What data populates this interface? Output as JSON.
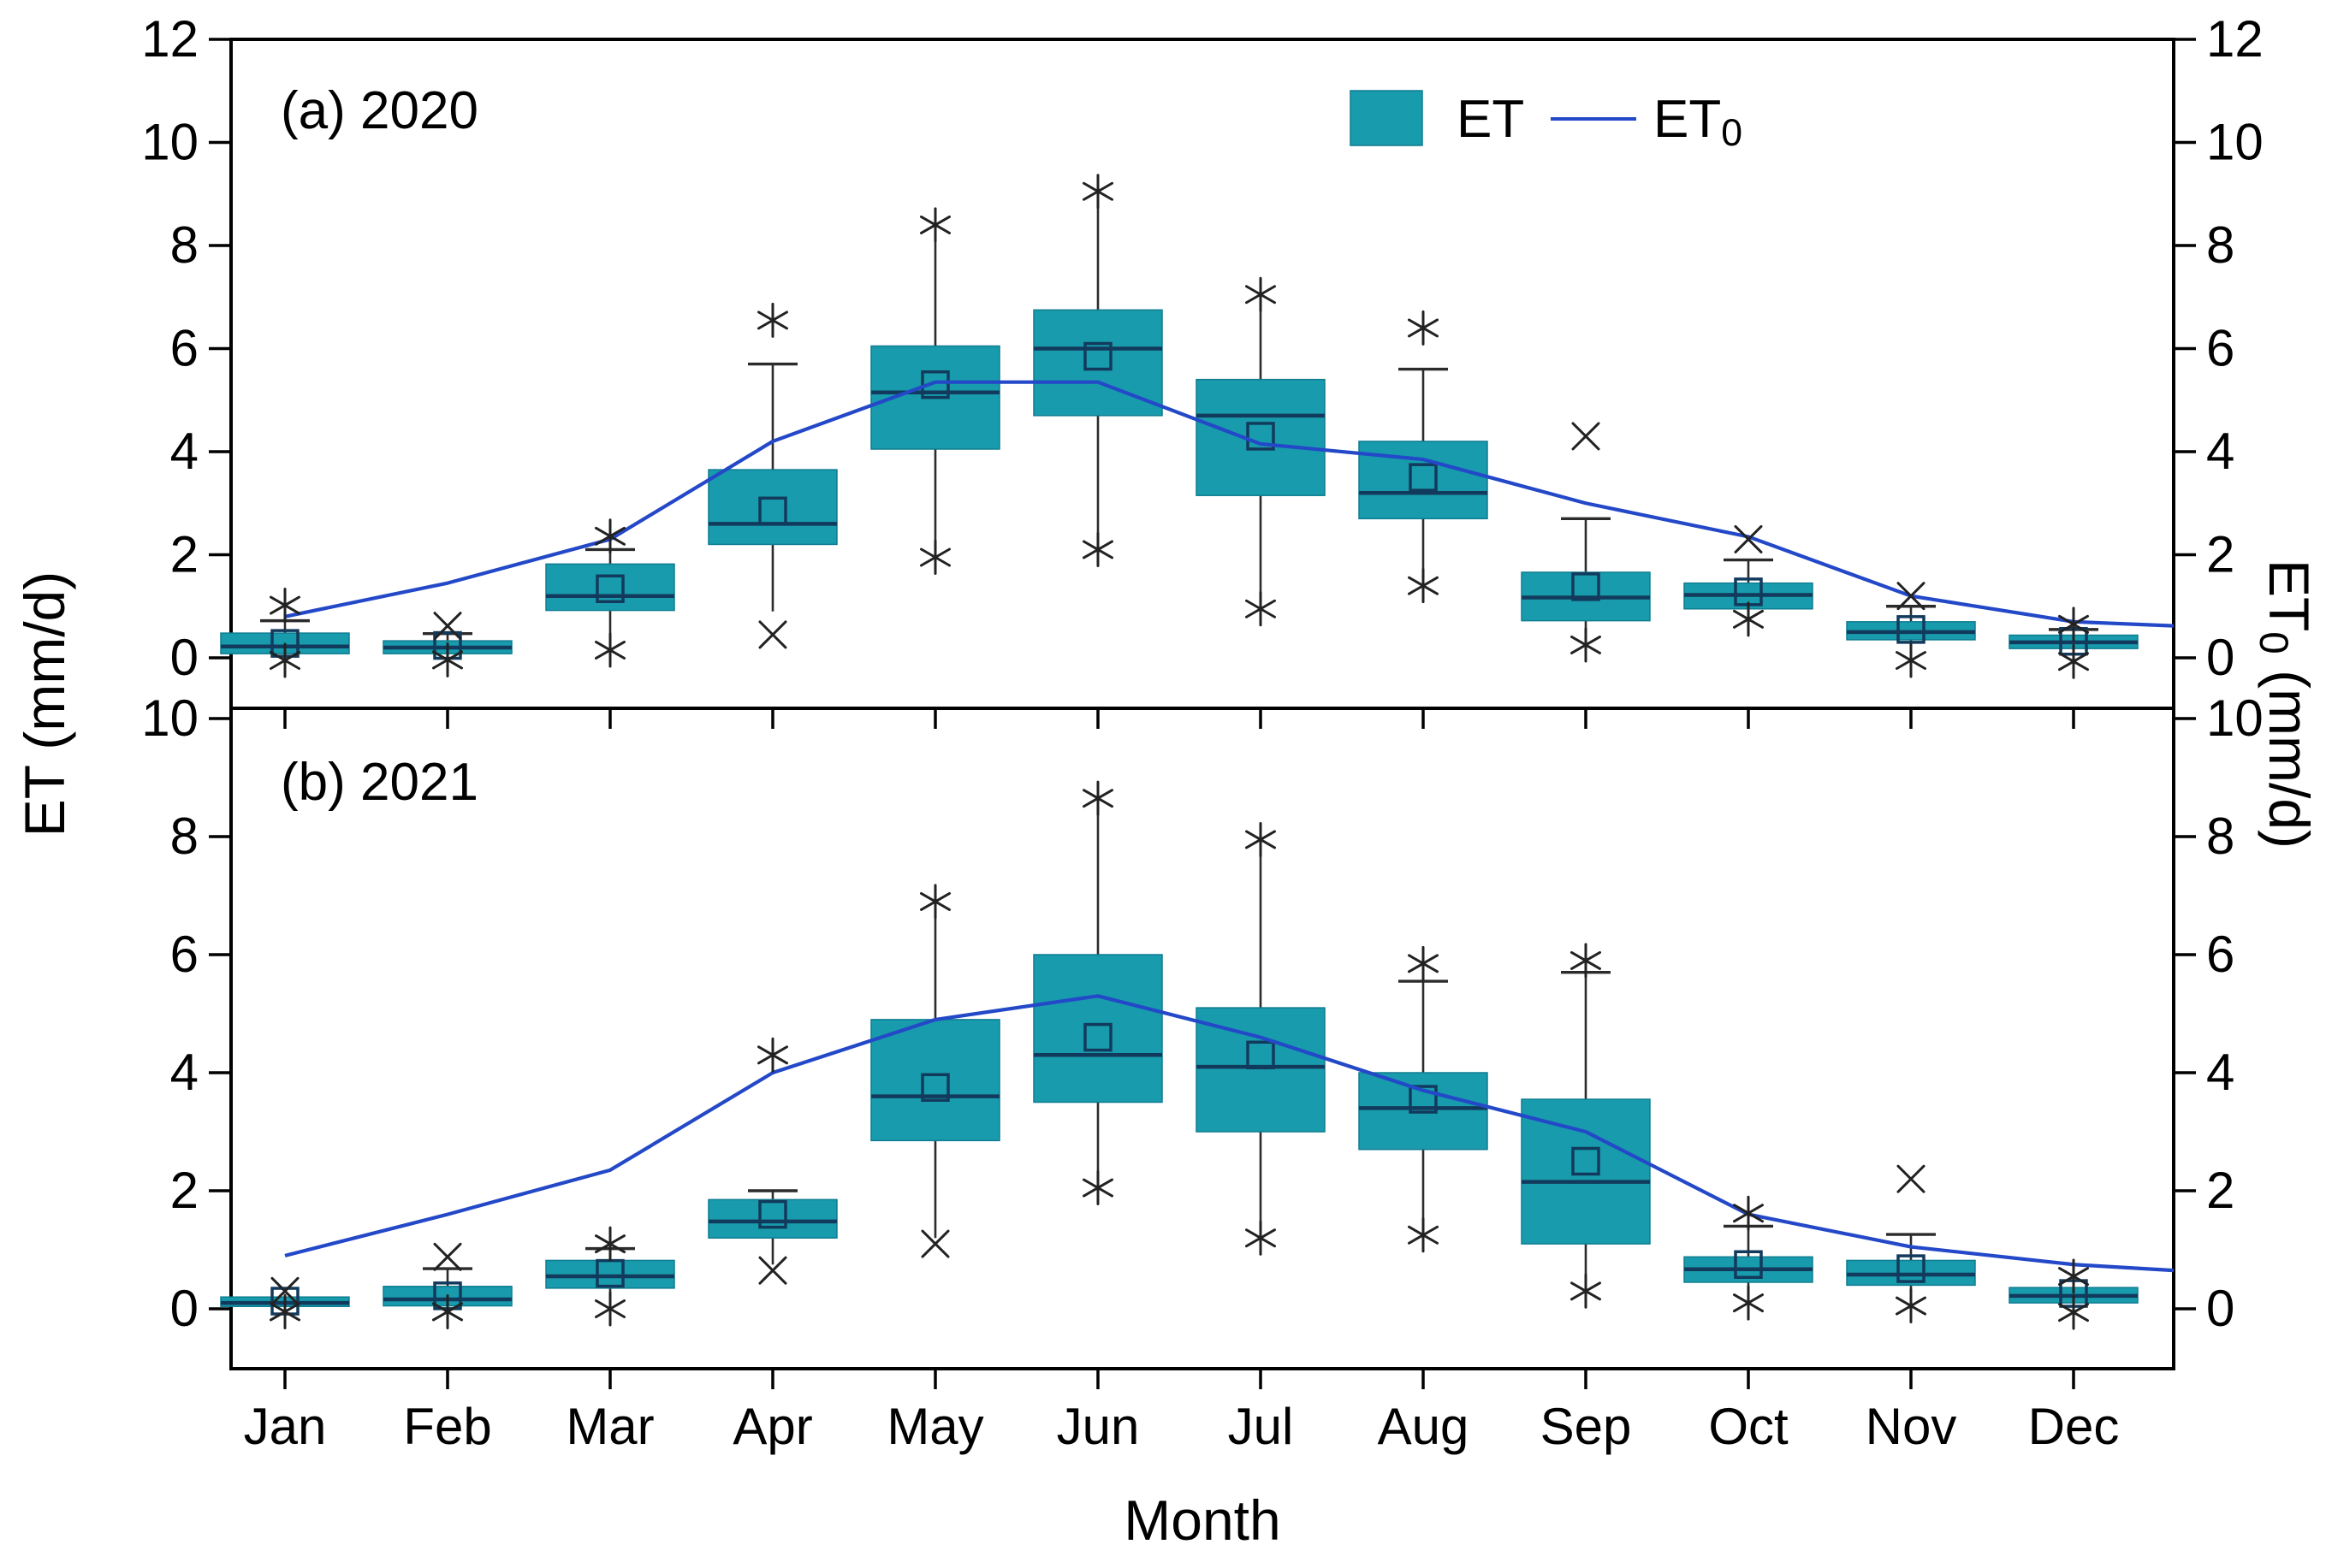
{
  "figure": {
    "xlabel": "Month",
    "ylabel_left": "ET (mm/d)",
    "ylabel_right_main": "ET",
    "ylabel_right_sub": "0",
    "ylabel_right_unit": " (mm/d)",
    "legend": {
      "box_label": "ET",
      "line_label_main": "ET",
      "line_label_sub": "0"
    }
  },
  "chart_data": {
    "type": "box",
    "categories": [
      "Jan",
      "Feb",
      "Mar",
      "Apr",
      "May",
      "Jun",
      "Jul",
      "Aug",
      "Sep",
      "Oct",
      "Nov",
      "Dec"
    ],
    "xlabel": "Month",
    "ylabel_left": "ET (mm/d)",
    "ylabel_right": "ET0 (mm/d)",
    "legend_entries": [
      "ET",
      "ET0"
    ],
    "legend_position": "top-right-inside",
    "grid": false,
    "colors": {
      "box_fill": "#189BAC",
      "box_edge": "#0F7D92",
      "median": "#123A5C",
      "mean_edge": "#123A5C",
      "whisker": "#2B2B2B",
      "outlier": "#222222",
      "et0_line": "#2348C8",
      "frame": "#000000"
    },
    "panels": [
      {
        "id": "a",
        "label": "(a) 2020",
        "ylim": [
          -0.95,
          12.05
        ],
        "yticks": [
          0,
          2,
          4,
          6,
          8,
          10,
          12
        ],
        "boxes": [
          {
            "m": "Jan",
            "q1": 0.08,
            "med": 0.22,
            "q3": 0.48,
            "mean": 0.28,
            "wlo": 0.0,
            "whi": 0.72,
            "cap_hi": true,
            "cap_lo": false,
            "hi": 1.02,
            "hi_m": "star",
            "lo": -0.05,
            "lo_m": "star"
          },
          {
            "m": "Feb",
            "q1": 0.08,
            "med": 0.2,
            "q3": 0.33,
            "mean": 0.24,
            "wlo": 0.02,
            "whi": 0.47,
            "cap_hi": true,
            "cap_lo": false,
            "hi": 0.62,
            "hi_m": "cross",
            "lo": -0.04,
            "lo_m": "star"
          },
          {
            "m": "Mar",
            "q1": 0.92,
            "med": 1.2,
            "q3": 1.82,
            "mean": 1.34,
            "wlo": 0.45,
            "whi": 2.1,
            "cap_hi": true,
            "cap_lo": false,
            "hi": 2.36,
            "hi_m": "star",
            "lo": 0.15,
            "lo_m": "star"
          },
          {
            "m": "Apr",
            "q1": 2.2,
            "med": 2.6,
            "q3": 3.65,
            "mean": 2.85,
            "wlo": 0.9,
            "whi": 5.7,
            "cap_hi": true,
            "cap_lo": false,
            "hi": 6.55,
            "hi_m": "star",
            "lo": 0.45,
            "lo_m": "cross"
          },
          {
            "m": "May",
            "q1": 4.05,
            "med": 5.15,
            "q3": 6.05,
            "mean": 5.3,
            "wlo": 2.1,
            "whi": 8.2,
            "cap_hi": false,
            "cap_lo": false,
            "hi": 8.4,
            "hi_m": "star",
            "lo": 1.95,
            "lo_m": "star"
          },
          {
            "m": "Jun",
            "q1": 4.7,
            "med": 6.0,
            "q3": 6.75,
            "mean": 5.85,
            "wlo": 2.25,
            "whi": 8.85,
            "cap_hi": false,
            "cap_lo": false,
            "hi": 9.05,
            "hi_m": "star",
            "lo": 2.1,
            "lo_m": "star"
          },
          {
            "m": "Jul",
            "q1": 3.15,
            "med": 4.7,
            "q3": 5.4,
            "mean": 4.3,
            "wlo": 1.1,
            "whi": 6.85,
            "cap_hi": false,
            "cap_lo": false,
            "hi": 7.05,
            "hi_m": "star",
            "lo": 0.95,
            "lo_m": "star"
          },
          {
            "m": "Aug",
            "q1": 2.7,
            "med": 3.2,
            "q3": 4.2,
            "mean": 3.5,
            "wlo": 1.45,
            "whi": 5.6,
            "cap_hi": true,
            "cap_lo": false,
            "hi": 6.4,
            "hi_m": "star",
            "lo": 1.4,
            "lo_m": "star"
          },
          {
            "m": "Sep",
            "q1": 0.72,
            "med": 1.17,
            "q3": 1.66,
            "mean": 1.38,
            "wlo": 0.3,
            "whi": 2.7,
            "cap_hi": true,
            "cap_lo": false,
            "hi": 4.3,
            "hi_m": "cross",
            "lo": 0.25,
            "lo_m": "star"
          },
          {
            "m": "Oct",
            "q1": 0.95,
            "med": 1.22,
            "q3": 1.45,
            "mean": 1.28,
            "wlo": 0.78,
            "whi": 1.9,
            "cap_hi": true,
            "cap_lo": false,
            "hi": 2.3,
            "hi_m": "cross",
            "lo": 0.75,
            "lo_m": "star"
          },
          {
            "m": "Nov",
            "q1": 0.35,
            "med": 0.5,
            "q3": 0.7,
            "mean": 0.55,
            "wlo": 0.05,
            "whi": 1.0,
            "cap_hi": true,
            "cap_lo": false,
            "hi": 1.2,
            "hi_m": "cross",
            "lo": -0.05,
            "lo_m": "star"
          },
          {
            "m": "Dec",
            "q1": 0.18,
            "med": 0.3,
            "q3": 0.44,
            "mean": 0.32,
            "wlo": 0.02,
            "whi": 0.55,
            "cap_hi": true,
            "cap_lo": false,
            "hi": 0.65,
            "hi_m": "star",
            "lo": -0.07,
            "lo_m": "star"
          }
        ],
        "et0": [
          0.8,
          1.45,
          2.3,
          4.2,
          5.35,
          5.35,
          4.15,
          3.85,
          3.0,
          2.35,
          1.2,
          0.7
        ],
        "et0_right_end": 0.62
      },
      {
        "id": "b",
        "label": "(b) 2021",
        "ylim": [
          -1.0,
          10.2
        ],
        "yticks": [
          0,
          2,
          4,
          6,
          8,
          10
        ],
        "boxes": [
          {
            "m": "Jan",
            "q1": 0.04,
            "med": 0.1,
            "q3": 0.2,
            "mean": 0.13,
            "wlo": 0.0,
            "whi": 0.25,
            "cap_hi": false,
            "cap_lo": false,
            "hi": 0.3,
            "hi_m": "cross",
            "lo": -0.05,
            "lo_m": "star"
          },
          {
            "m": "Feb",
            "q1": 0.05,
            "med": 0.16,
            "q3": 0.38,
            "mean": 0.22,
            "wlo": 0.0,
            "whi": 0.68,
            "cap_hi": true,
            "cap_lo": false,
            "hi": 0.88,
            "hi_m": "cross",
            "lo": -0.05,
            "lo_m": "star"
          },
          {
            "m": "Mar",
            "q1": 0.35,
            "med": 0.55,
            "q3": 0.82,
            "mean": 0.6,
            "wlo": 0.08,
            "whi": 1.02,
            "cap_hi": true,
            "cap_lo": false,
            "hi": 1.1,
            "hi_m": "star",
            "lo": 0.0,
            "lo_m": "star"
          },
          {
            "m": "Apr",
            "q1": 1.2,
            "med": 1.48,
            "q3": 1.85,
            "mean": 1.6,
            "wlo": 0.75,
            "whi": 2.0,
            "cap_hi": true,
            "cap_lo": false,
            "hi": 4.3,
            "hi_m": "star",
            "lo": 0.65,
            "lo_m": "cross"
          },
          {
            "m": "May",
            "q1": 2.85,
            "med": 3.6,
            "q3": 4.9,
            "mean": 3.75,
            "wlo": 1.2,
            "whi": 6.7,
            "cap_hi": false,
            "cap_lo": false,
            "hi": 6.9,
            "hi_m": "star",
            "lo": 1.1,
            "lo_m": "cross"
          },
          {
            "m": "Jun",
            "q1": 3.5,
            "med": 4.3,
            "q3": 6.0,
            "mean": 4.6,
            "wlo": 2.15,
            "whi": 8.4,
            "cap_hi": false,
            "cap_lo": false,
            "hi": 8.65,
            "hi_m": "star",
            "lo": 2.05,
            "lo_m": "star"
          },
          {
            "m": "Jul",
            "q1": 3.0,
            "med": 4.1,
            "q3": 5.1,
            "mean": 4.3,
            "wlo": 1.3,
            "whi": 7.7,
            "cap_hi": false,
            "cap_lo": false,
            "hi": 7.95,
            "hi_m": "star",
            "lo": 1.2,
            "lo_m": "star"
          },
          {
            "m": "Aug",
            "q1": 2.7,
            "med": 3.4,
            "q3": 4.0,
            "mean": 3.55,
            "wlo": 1.3,
            "whi": 5.55,
            "cap_hi": true,
            "cap_lo": false,
            "hi": 5.85,
            "hi_m": "star",
            "lo": 1.25,
            "lo_m": "star"
          },
          {
            "m": "Sep",
            "q1": 1.1,
            "med": 2.15,
            "q3": 3.55,
            "mean": 2.5,
            "wlo": 0.35,
            "whi": 5.7,
            "cap_hi": true,
            "cap_lo": false,
            "hi": 5.9,
            "hi_m": "star",
            "lo": 0.3,
            "lo_m": "star"
          },
          {
            "m": "Oct",
            "q1": 0.45,
            "med": 0.67,
            "q3": 0.88,
            "mean": 0.75,
            "wlo": 0.2,
            "whi": 1.4,
            "cap_hi": true,
            "cap_lo": false,
            "hi": 1.62,
            "hi_m": "star",
            "lo": 0.1,
            "lo_m": "star"
          },
          {
            "m": "Nov",
            "q1": 0.4,
            "med": 0.58,
            "q3": 0.82,
            "mean": 0.68,
            "wlo": 0.1,
            "whi": 1.26,
            "cap_hi": true,
            "cap_lo": false,
            "hi": 2.2,
            "hi_m": "cross",
            "lo": 0.05,
            "lo_m": "star"
          },
          {
            "m": "Dec",
            "q1": 0.1,
            "med": 0.22,
            "q3": 0.36,
            "mean": 0.26,
            "wlo": 0.03,
            "whi": 0.5,
            "cap_hi": false,
            "cap_lo": false,
            "hi": 0.55,
            "hi_m": "star",
            "lo": -0.06,
            "lo_m": "star"
          }
        ],
        "et0": [
          0.9,
          1.6,
          2.35,
          4.0,
          4.9,
          5.3,
          4.6,
          3.7,
          3.0,
          1.6,
          1.05,
          0.75
        ],
        "et0_right_end": 0.65
      }
    ]
  }
}
